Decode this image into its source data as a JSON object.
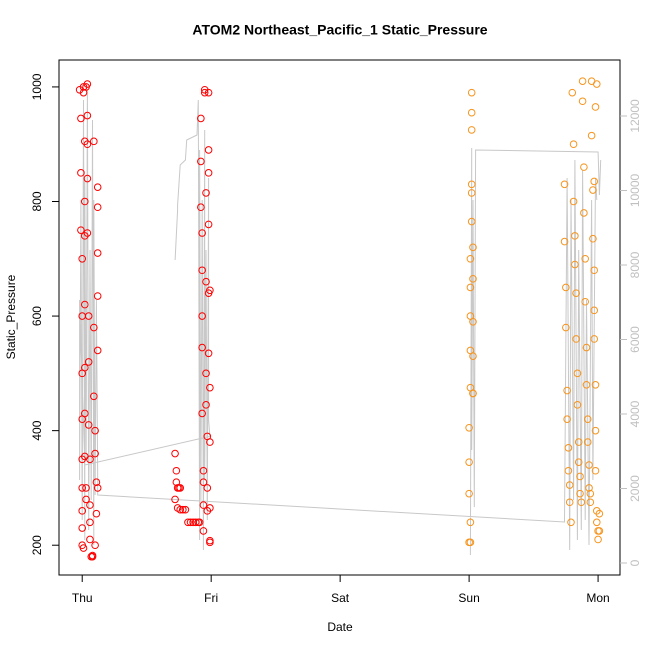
{
  "chart_data": {
    "type": "scatter",
    "title": "ATOM2 Northeast_Pacific_1 Static_Pressure",
    "xlabel": "Date",
    "ylabel": "Static_Pressure",
    "xlim": [
      -0.18,
      4.17
    ],
    "xticks": [
      {
        "value": 0,
        "label": "Thu"
      },
      {
        "value": 1,
        "label": "Fri"
      },
      {
        "value": 2,
        "label": "Sat"
      },
      {
        "value": 3,
        "label": "Sun"
      },
      {
        "value": 4,
        "label": "Mon"
      }
    ],
    "ylim": [
      148,
      1047
    ],
    "yticks": [
      200,
      400,
      600,
      800,
      1000
    ],
    "y2lim": [
      -322,
      13503
    ],
    "y2ticks": [
      0,
      2000,
      4000,
      6000,
      8000,
      10000,
      12000
    ],
    "series": [
      {
        "type": "scatter",
        "color": "#ff0000",
        "x": [
          -0.02,
          -0.01,
          -0.01,
          -0.01,
          0,
          0,
          0,
          0,
          0,
          0,
          0,
          0,
          0,
          0.01,
          0.01,
          0.01,
          0.02,
          0.02,
          0.02,
          0.02,
          0.02,
          0.02,
          0.02,
          0.03,
          0.03,
          0.03,
          0.04,
          0.04,
          0.04,
          0.04,
          0.04,
          0.05,
          0.05,
          0.05,
          0.06,
          0.06,
          0.06,
          0.06,
          0.07,
          0.08,
          0.08,
          0.09,
          0.09,
          0.09,
          0.1,
          0.1,
          0.11,
          0.12,
          0.12,
          0.12,
          0.12,
          0.12,
          0.12,
          0.11,
          0.1,
          0.72,
          0.73,
          0.73,
          0.74,
          0.75,
          0.76,
          0.72,
          0.74,
          0.76,
          0.78,
          0.8,
          0.82,
          0.84,
          0.86,
          0.88,
          0.9,
          0.91,
          0.92,
          0.92,
          0.92,
          0.93,
          0.93,
          0.93,
          0.93,
          0.93,
          0.94,
          0.94,
          0.94,
          0.94,
          0.95,
          0.95,
          0.96,
          0.96,
          0.96,
          0.96,
          0.97,
          0.97,
          0.97,
          0.98,
          0.98,
          0.98,
          0.98,
          0.98,
          0.98,
          0.99,
          0.99,
          0.99,
          0.99,
          0.99,
          0.99
        ],
        "values": [
          995,
          945,
          850,
          750,
          700,
          600,
          500,
          420,
          350,
          300,
          260,
          230,
          200,
          195,
          1000,
          990,
          905,
          800,
          740,
          620,
          510,
          430,
          355,
          300,
          280,
          1000,
          1005,
          950,
          900,
          840,
          745,
          600,
          520,
          410,
          350,
          270,
          240,
          210,
          180,
          180,
          182,
          905,
          580,
          460,
          400,
          360,
          310,
          825,
          790,
          710,
          635,
          540,
          300,
          255,
          200,
          360,
          330,
          310,
          300,
          300,
          300,
          280,
          265,
          262,
          262,
          262,
          240,
          240,
          240,
          240,
          240,
          240,
          945,
          870,
          790,
          745,
          680,
          600,
          545,
          430,
          330,
          310,
          270,
          225,
          995,
          990,
          815,
          660,
          500,
          445,
          390,
          300,
          260,
          990,
          890,
          850,
          760,
          640,
          535,
          645,
          475,
          380,
          265,
          205,
          208
        ]
      },
      {
        "type": "scatter",
        "color": "#f7941d",
        "x": [
          3.0,
          3.01,
          3.0,
          3.0,
          3.0,
          3.01,
          3.01,
          3.01,
          3.01,
          3.01,
          3.02,
          3.02,
          3.02,
          3.02,
          3.02,
          3.03,
          3.03,
          3.03,
          3.03,
          3.03,
          3.03,
          3.02,
          3.01,
          3.74,
          3.74,
          3.75,
          3.75,
          3.76,
          3.76,
          3.77,
          3.77,
          3.78,
          3.78,
          3.79,
          3.8,
          3.81,
          3.81,
          3.82,
          3.82,
          3.83,
          3.83,
          3.84,
          3.84,
          3.85,
          3.85,
          3.86,
          3.86,
          3.87,
          3.88,
          3.88,
          3.89,
          3.89,
          3.9,
          3.9,
          3.91,
          3.91,
          3.92,
          3.92,
          3.93,
          3.93,
          3.94,
          3.94,
          3.95,
          3.95,
          3.96,
          3.96,
          3.97,
          3.97,
          3.97,
          3.98,
          3.98,
          3.98,
          3.99,
          3.99,
          4.0,
          4.0,
          3.99,
          3.98,
          3.97,
          4.01,
          4.01
        ],
        "values": [
          205,
          205,
          290,
          345,
          405,
          475,
          540,
          600,
          650,
          700,
          765,
          830,
          925,
          955,
          990,
          465,
          465,
          530,
          590,
          665,
          720,
          815,
          240,
          830,
          730,
          650,
          580,
          470,
          420,
          370,
          330,
          305,
          275,
          240,
          990,
          900,
          800,
          740,
          690,
          640,
          560,
          500,
          445,
          380,
          345,
          320,
          290,
          275,
          1010,
          975,
          860,
          780,
          700,
          625,
          545,
          480,
          420,
          380,
          340,
          300,
          290,
          275,
          1010,
          915,
          820,
          735,
          680,
          610,
          560,
          480,
          400,
          330,
          260,
          240,
          225,
          210,
          1005,
          965,
          835,
          255,
          225
        ]
      },
      {
        "type": "line",
        "axis": "y2",
        "color": "#c8c8c8",
        "x": [
          0.72,
          0.74,
          0.74,
          0.76,
          0.8,
          0.81,
          0.89,
          0.9,
          0.91,
          0.91,
          0.92,
          0.93,
          0.94,
          0.95,
          0.95,
          0.96,
          0.97,
          0.98,
          0.98,
          0.99,
          0.02,
          -0.02,
          -0.02,
          -0.01,
          0,
          0.01,
          0.02,
          0.02,
          0.03,
          0.04,
          0.05,
          0.06,
          0.07,
          0.08,
          0.09,
          0.09,
          0.1,
          0.11,
          0.12,
          0.12,
          3.74,
          3.76,
          3.78,
          3.79,
          3.81,
          3.82,
          3.84,
          3.85,
          3.87,
          3.88,
          3.9,
          3.91,
          3.93,
          3.95,
          3.96,
          3.98,
          3.99,
          null,
          3.01,
          3.02,
          3.02,
          3.03,
          3.04,
          3.05,
          4.0,
          4.01,
          4.02
        ],
        "values": [
          8134,
          9477,
          9611,
          10685,
          10819,
          11356,
          11490,
          12430,
          617,
          11087,
          1691,
          9745,
          349,
          11624,
          2228,
          8403,
          1154,
          10336,
          3839,
          3400,
          2631,
          7060,
          2228,
          9745,
          1154,
          12430,
          617,
          10336,
          2765,
          12698,
          886,
          8403,
          1691,
          11893,
          483,
          9745,
          1826,
          7060,
          2228,
          1826,
          1101,
          10336,
          349,
          9745,
          1691,
          10819,
          617,
          8403,
          886,
          10550,
          1154,
          7060,
          483,
          9745,
          2228,
          10336,
          9745,
          null,
          215,
          11141,
          3034,
          9745,
          1500,
          11087,
          11033,
          9879,
          10819
        ]
      }
    ]
  }
}
